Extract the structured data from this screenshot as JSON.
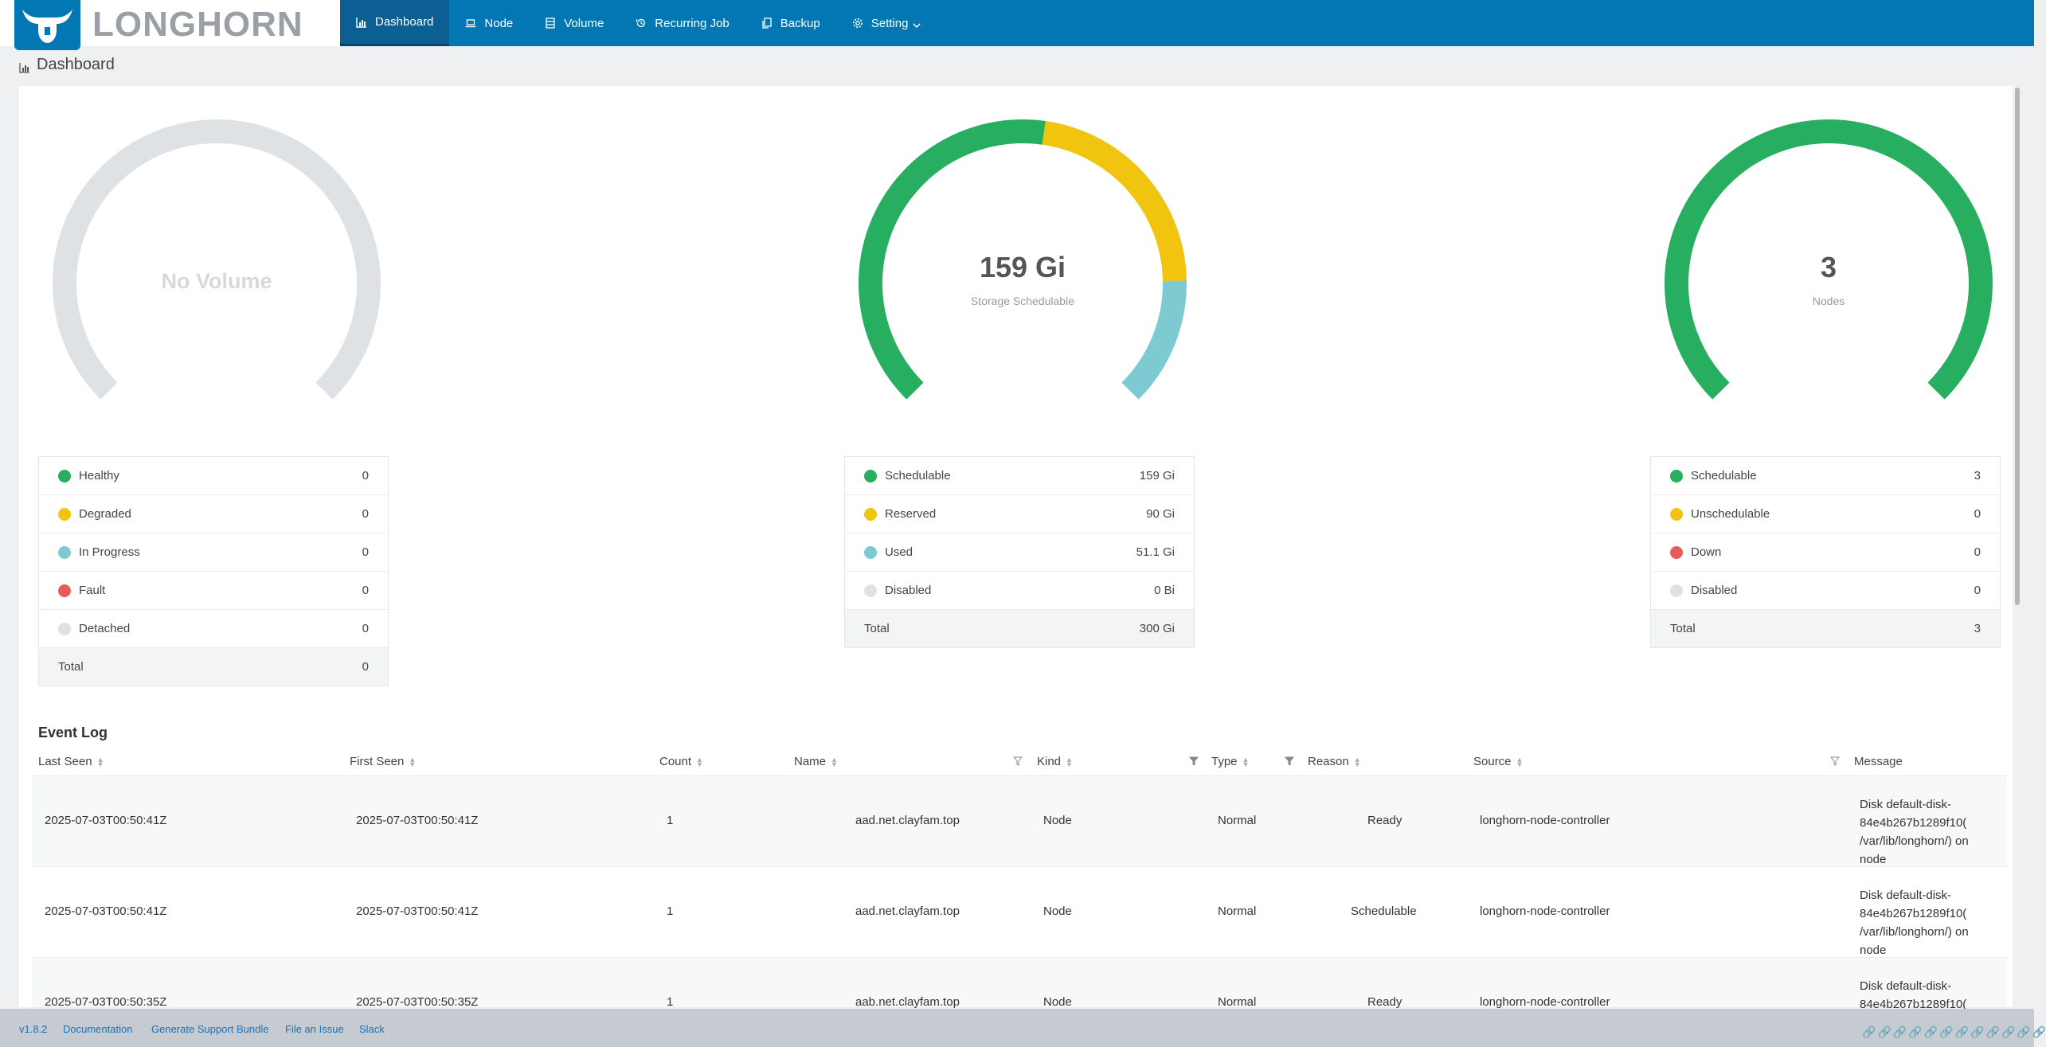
{
  "header": {
    "brand": "LONGHORN",
    "nav": [
      {
        "label": "Dashboard",
        "icon": "bar-chart-icon",
        "active": true
      },
      {
        "label": "Node",
        "icon": "laptop-icon"
      },
      {
        "label": "Volume",
        "icon": "database-icon"
      },
      {
        "label": "Recurring Job",
        "icon": "history-icon"
      },
      {
        "label": "Backup",
        "icon": "copy-icon"
      },
      {
        "label": "Setting",
        "icon": "gear-icon",
        "has_dropdown": true
      }
    ]
  },
  "page": {
    "title": "Dashboard"
  },
  "colors": {
    "green": "#27ae60",
    "yellow": "#f1c40f",
    "cyan": "#7ecad3",
    "red": "#e95b5b",
    "gray": "#dfe2e4",
    "header": "#0277b4"
  },
  "volume_gauge": {
    "label": "No Volume"
  },
  "storage_gauge": {
    "value": "159 Gi",
    "label": "Storage Schedulable",
    "segments": [
      {
        "name": "Schedulable",
        "value": 159
      },
      {
        "name": "Reserved",
        "value": 90
      },
      {
        "name": "Used",
        "value": 51.1
      }
    ]
  },
  "node_gauge": {
    "value": "3",
    "label": "Nodes"
  },
  "volume_legend": [
    {
      "label": "Healthy",
      "value": "0",
      "color": "#27ae60"
    },
    {
      "label": "Degraded",
      "value": "0",
      "color": "#f1c40f"
    },
    {
      "label": "In Progress",
      "value": "0",
      "color": "#7ecad3"
    },
    {
      "label": "Fault",
      "value": "0",
      "color": "#e95b5b"
    },
    {
      "label": "Detached",
      "value": "0",
      "color": "#dfe2e4"
    },
    {
      "label": "Total",
      "value": "0"
    }
  ],
  "storage_legend": [
    {
      "label": "Schedulable",
      "value": "159 Gi",
      "color": "#27ae60"
    },
    {
      "label": "Reserved",
      "value": "90 Gi",
      "color": "#f1c40f"
    },
    {
      "label": "Used",
      "value": "51.1 Gi",
      "color": "#7ecad3"
    },
    {
      "label": "Disabled",
      "value": "0 Bi",
      "color": "#dfe2e4"
    },
    {
      "label": "Total",
      "value": "300 Gi"
    }
  ],
  "node_legend": [
    {
      "label": "Schedulable",
      "value": "3",
      "color": "#27ae60"
    },
    {
      "label": "Unschedulable",
      "value": "0",
      "color": "#f1c40f"
    },
    {
      "label": "Down",
      "value": "0",
      "color": "#e95b5b"
    },
    {
      "label": "Disabled",
      "value": "0",
      "color": "#dfe2e4"
    },
    {
      "label": "Total",
      "value": "3"
    }
  ],
  "event_log": {
    "title": "Event Log",
    "columns": [
      "Last Seen",
      "First Seen",
      "Count",
      "Name",
      "Kind",
      "Type",
      "Reason",
      "Source",
      "Message"
    ],
    "rows": [
      {
        "last_seen": "2025-07-03T00:50:41Z",
        "first_seen": "2025-07-03T00:50:41Z",
        "count": "1",
        "name": "aad.net.clayfam.top",
        "kind": "Node",
        "type": "Normal",
        "reason": "Ready",
        "source": "longhorn-node-controller",
        "message": "Disk default-disk-84e4b267b1289f10( /var/lib/longhorn/) on node"
      },
      {
        "last_seen": "2025-07-03T00:50:41Z",
        "first_seen": "2025-07-03T00:50:41Z",
        "count": "1",
        "name": "aad.net.clayfam.top",
        "kind": "Node",
        "type": "Normal",
        "reason": "Schedulable",
        "source": "longhorn-node-controller",
        "message": "Disk default-disk-84e4b267b1289f10( /var/lib/longhorn/) on node"
      },
      {
        "last_seen": "2025-07-03T00:50:35Z",
        "first_seen": "2025-07-03T00:50:35Z",
        "count": "1",
        "name": "aab.net.clayfam.top",
        "kind": "Node",
        "type": "Normal",
        "reason": "Ready",
        "source": "longhorn-node-controller",
        "message": "Disk default-disk-84e4b267b1289f10("
      }
    ]
  },
  "footer": {
    "version": "v1.8.2",
    "documentation": "Documentation",
    "support_bundle": "Generate Support Bundle",
    "file_issue": "File an Issue",
    "slack": "Slack"
  }
}
